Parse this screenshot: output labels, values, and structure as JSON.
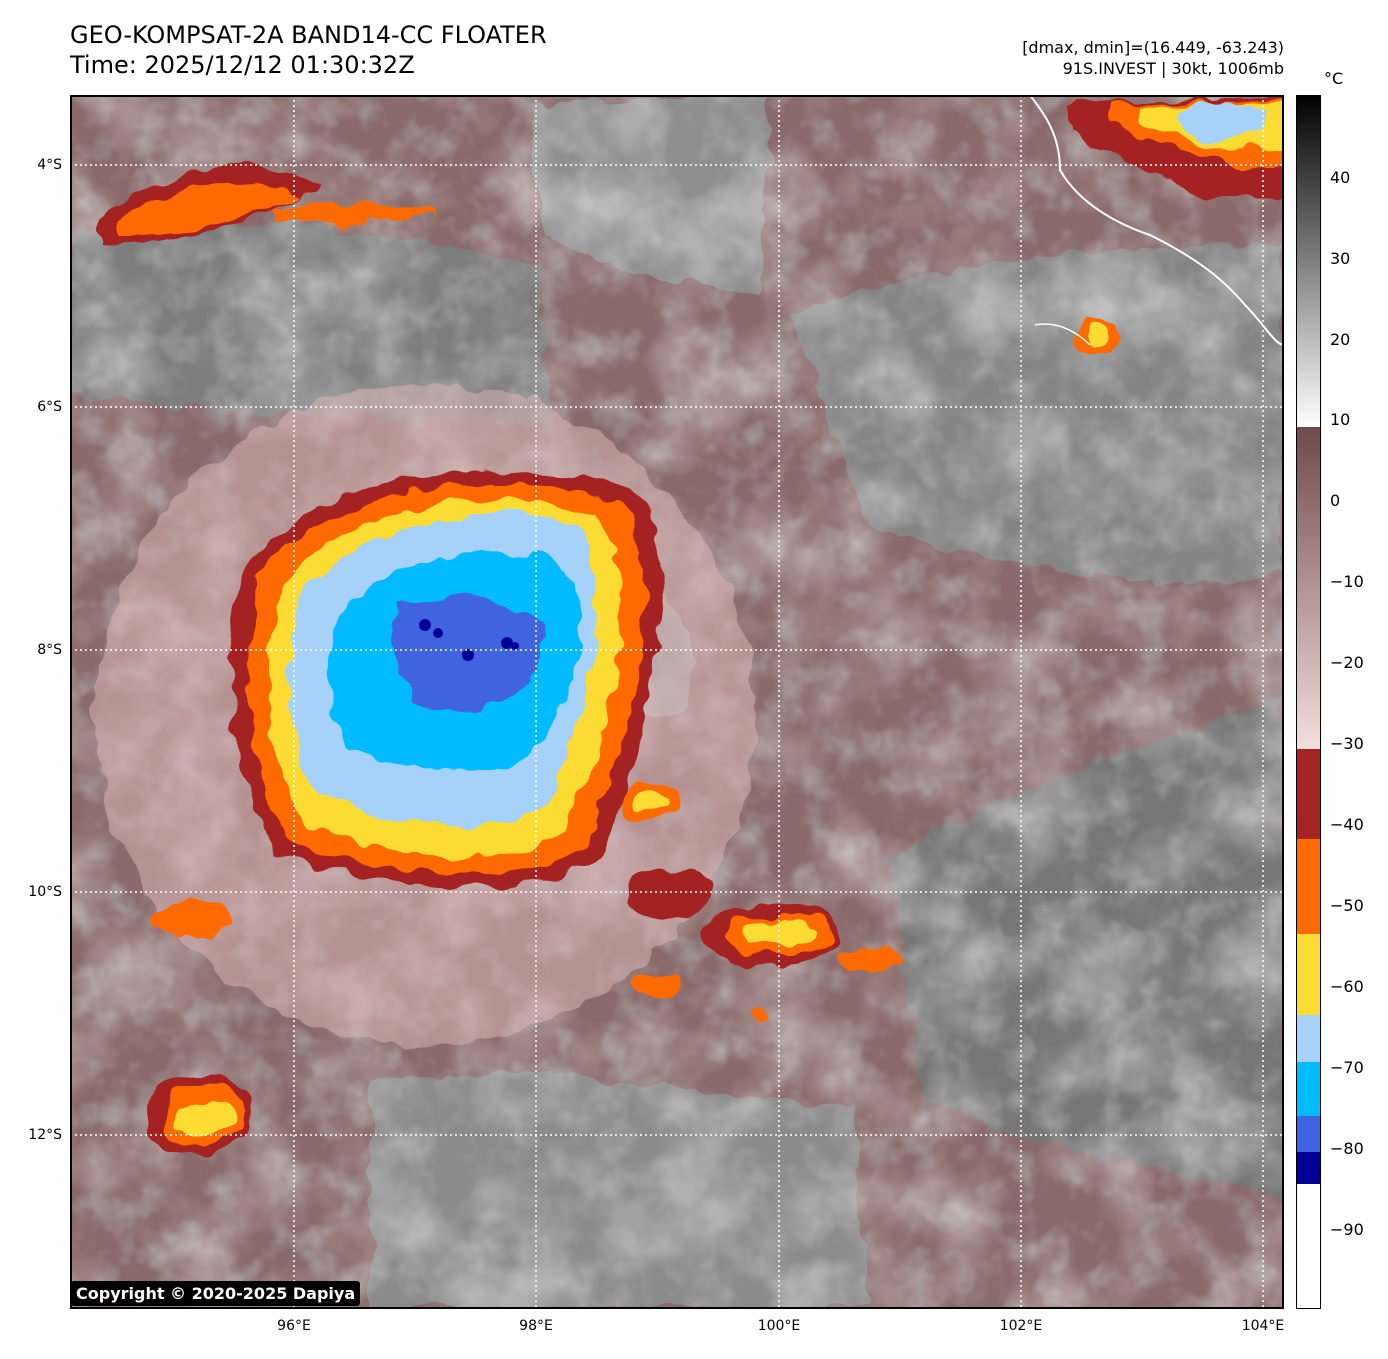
{
  "header": {
    "title_line1": "GEO-KOMPSAT-2A BAND14-CC FLOATER",
    "title_line2": "Time: 2025/12/12 01:30:32Z",
    "range_text": "[dmax, dmin]=(16.449, -63.243)",
    "storm_text": "91S.INVEST | 30kt, 1006mb"
  },
  "map": {
    "lat_labels": [
      "4°S",
      "6°S",
      "8°S",
      "10°S",
      "12°S"
    ],
    "lon_labels": [
      "96°E",
      "98°E",
      "100°E",
      "102°E",
      "104°E"
    ],
    "copyright": "Copyright © 2020-2025 Dapiya"
  },
  "colorbar": {
    "unit": "°C",
    "ticks": [
      "40",
      "30",
      "20",
      "10",
      "0",
      "−10",
      "−20",
      "−30",
      "−40",
      "−50",
      "−60",
      "−70",
      "−80",
      "−90"
    ],
    "colors": {
      "band_-40_-30": "#a52421",
      "band_-50_-40": "#ff6a00",
      "band_-60_-50": "#fcdc32",
      "band_-70_-60": "#a6d2fa",
      "band_-80_-70": "#00bbff",
      "band_-85_-80": "#3f63e0",
      "band_-90_-85": "#000099",
      "below_-90": "#ffffff"
    }
  },
  "features": {
    "main_convection": "91S.INVEST deep convection near 8°S 97.5°E",
    "icons": [
      "coastline-line",
      "gridline-dotted"
    ]
  }
}
